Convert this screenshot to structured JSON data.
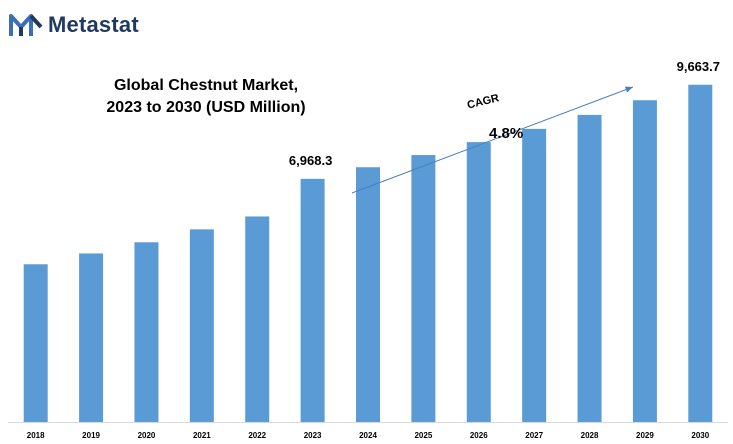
{
  "brand": {
    "name": "Metastat"
  },
  "chart_data": {
    "type": "bar",
    "title": "Global Chestnut Market,",
    "subtitle": "2023 to 2030 (USD Million)",
    "xlabel": "",
    "ylabel": "",
    "categories": [
      "2018",
      "2019",
      "2020",
      "2021",
      "2022",
      "2023",
      "2024",
      "2025",
      "2026",
      "2027",
      "2028",
      "2029",
      "2030"
    ],
    "values": [
      4520,
      4830,
      5150,
      5520,
      5890,
      6968.3,
      7300,
      7650,
      8020,
      8400,
      8800,
      9220,
      9663.7
    ],
    "data_labels": {
      "2023": "6,968.3",
      "2030": "9,663.7"
    },
    "ylim": [
      0,
      9800
    ],
    "grid": false,
    "legend": "none",
    "bar_color": "#5b9bd5",
    "annotation": {
      "label": "CAGR",
      "value": "4.8%",
      "arrow_color": "#4a7ec0"
    }
  }
}
